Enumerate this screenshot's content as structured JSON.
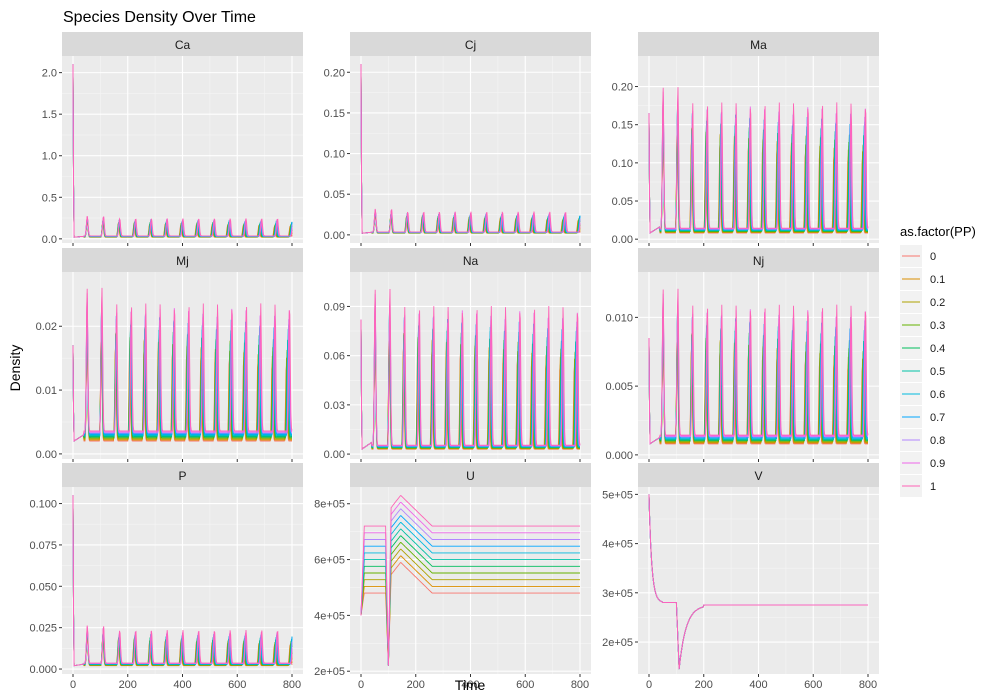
{
  "chart_data": {
    "type": "line",
    "title": "Species Density Over Time",
    "xlabel": "Time",
    "ylabel": "Density",
    "legend": {
      "title": "as.factor(PP)",
      "position": "right",
      "entries": [
        "0",
        "0.1",
        "0.2",
        "0.3",
        "0.4",
        "0.5",
        "0.6",
        "0.7",
        "0.8",
        "0.9",
        "1"
      ]
    },
    "series_colors": [
      "#F8766D",
      "#DB8E00",
      "#AEA200",
      "#64B200",
      "#00BD5C",
      "#00C1A7",
      "#00BADE",
      "#00A6FF",
      "#B385FF",
      "#EF67EB",
      "#FF63B6"
    ],
    "grid": true,
    "x_ticks": [
      "0",
      "200",
      "400",
      "600",
      "800"
    ],
    "x_range": [
      0,
      800
    ],
    "panels": [
      {
        "strip": "Ca",
        "ylim": [
          -0.05,
          2.2
        ],
        "y_ticks": [
          {
            "v": 0.0,
            "label": "0.0"
          },
          {
            "v": 0.5,
            "label": "0.5"
          },
          {
            "v": 1.0,
            "label": "1.0"
          },
          {
            "v": 1.5,
            "label": "1.5"
          },
          {
            "v": 2.0,
            "label": "2.0"
          }
        ],
        "model": {
          "kind": "osc",
          "base": 0.02,
          "amp": 0.21,
          "init": 2.1,
          "spread": 0.08,
          "period": 57,
          "start": 0.0,
          "drift": 1.0
        }
      },
      {
        "strip": "Cj",
        "ylim": [
          -0.01,
          0.22
        ],
        "y_ticks": [
          {
            "v": 0.0,
            "label": "0.00"
          },
          {
            "v": 0.05,
            "label": "0.05"
          },
          {
            "v": 0.1,
            "label": "0.10"
          },
          {
            "v": 0.15,
            "label": "0.15"
          },
          {
            "v": 0.2,
            "label": "0.20"
          }
        ],
        "model": {
          "kind": "osc",
          "base": 0.002,
          "amp": 0.025,
          "init": 0.21,
          "spread": 0.008,
          "period": 57,
          "start": 0.0,
          "drift": 1.0
        }
      },
      {
        "strip": "Ma",
        "ylim": [
          -0.005,
          0.24
        ],
        "y_ticks": [
          {
            "v": 0.0,
            "label": "0.00"
          },
          {
            "v": 0.05,
            "label": "0.05"
          },
          {
            "v": 0.1,
            "label": "0.10"
          },
          {
            "v": 0.15,
            "label": "0.15"
          },
          {
            "v": 0.2,
            "label": "0.20"
          }
        ],
        "model": {
          "kind": "osc",
          "base": 0.008,
          "amp": 0.165,
          "init": 0.165,
          "spread": 0.05,
          "period": 52,
          "start": 0.0,
          "drift": 1.0
        }
      },
      {
        "strip": "Mj",
        "ylim": [
          -0.0008,
          0.0285
        ],
        "y_ticks": [
          {
            "v": 0.0,
            "label": "0.00"
          },
          {
            "v": 0.01,
            "label": "0.01"
          },
          {
            "v": 0.02,
            "label": "0.02"
          }
        ],
        "model": {
          "kind": "osc",
          "base": 0.002,
          "amp": 0.02,
          "init": 0.017,
          "spread": 0.006,
          "period": 52,
          "start": 0.0,
          "drift": 1.0
        }
      },
      {
        "strip": "Na",
        "ylim": [
          -0.003,
          0.111
        ],
        "y_ticks": [
          {
            "v": 0.0,
            "label": "0.00"
          },
          {
            "v": 0.03,
            "label": "0.03"
          },
          {
            "v": 0.06,
            "label": "0.06"
          },
          {
            "v": 0.09,
            "label": "0.09"
          }
        ],
        "model": {
          "kind": "osc",
          "base": 0.003,
          "amp": 0.085,
          "init": 0.082,
          "spread": 0.02,
          "period": 52,
          "start": 0.0,
          "drift": 1.0
        }
      },
      {
        "strip": "Nj",
        "ylim": [
          -0.0003,
          0.0133
        ],
        "y_ticks": [
          {
            "v": 0.0,
            "label": "0.000"
          },
          {
            "v": 0.005,
            "label": "0.005"
          },
          {
            "v": 0.01,
            "label": "0.010"
          }
        ],
        "model": {
          "kind": "osc",
          "base": 0.0008,
          "amp": 0.0095,
          "init": 0.0085,
          "spread": 0.002,
          "period": 52,
          "start": 0.0,
          "drift": 1.0
        }
      },
      {
        "strip": "P",
        "ylim": [
          -0.003,
          0.11
        ],
        "y_ticks": [
          {
            "v": 0.0,
            "label": "0.000"
          },
          {
            "v": 0.025,
            "label": "0.025"
          },
          {
            "v": 0.05,
            "label": "0.050"
          },
          {
            "v": 0.075,
            "label": "0.075"
          },
          {
            "v": 0.1,
            "label": "0.100"
          }
        ],
        "model": {
          "kind": "osc",
          "base": 0.002,
          "amp": 0.02,
          "init": 0.105,
          "spread": 0.006,
          "period": 57,
          "start": 0.0,
          "drift": 1.0
        }
      },
      {
        "strip": "U",
        "ylim": [
          190000,
          860000
        ],
        "y_ticks": [
          {
            "v": 200000,
            "label": "2e+05"
          },
          {
            "v": 400000,
            "label": "4e+05"
          },
          {
            "v": 600000,
            "label": "6e+05"
          },
          {
            "v": 800000,
            "label": "8e+05"
          }
        ],
        "model": {
          "kind": "u",
          "low": 480000,
          "high": 720000,
          "init": 400000,
          "dip": 220000,
          "peak_add": 110000,
          "t_dip": 100
        }
      },
      {
        "strip": "V",
        "ylim": [
          135000,
          515000
        ],
        "y_ticks": [
          {
            "v": 200000,
            "label": "2e+05"
          },
          {
            "v": 300000,
            "label": "3e+05"
          },
          {
            "v": 400000,
            "label": "4e+05"
          },
          {
            "v": 500000,
            "label": "5e+05"
          }
        ],
        "model": {
          "kind": "v",
          "init": 500000,
          "plateau": 280000,
          "dip": 145000,
          "t_dip": 110,
          "steady": 275000
        }
      }
    ]
  }
}
